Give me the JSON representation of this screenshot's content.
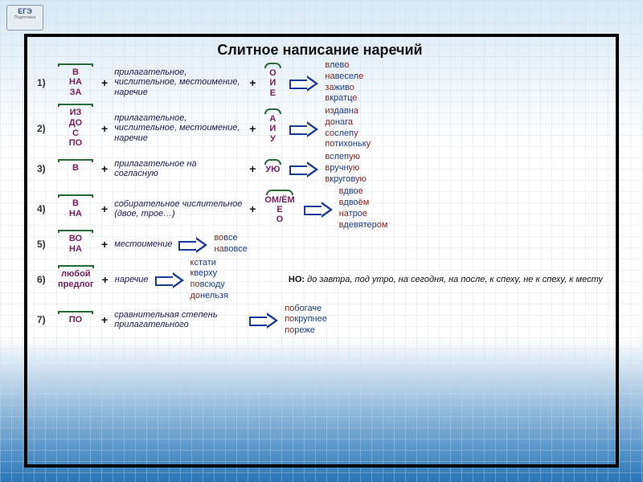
{
  "badge": {
    "line1": "ЕГЭ",
    "line2": "Подготовка"
  },
  "title": "Слитное написание наречий",
  "rows": [
    {
      "num": "1)",
      "prefixes": [
        "В",
        "НА",
        "ЗА"
      ],
      "middle": "прилагательное, числительное, местоимение, наречие",
      "suffixes": [
        "О",
        "И",
        "Е"
      ],
      "examples": [
        {
          "a": "в",
          "b": "лев",
          "c": "о"
        },
        {
          "a": "на",
          "b": "весел",
          "c": "е"
        },
        {
          "a": "за",
          "b": "жив",
          "c": "о"
        },
        {
          "a": "в",
          "b": "кратц",
          "c": "е"
        }
      ]
    },
    {
      "num": "2)",
      "prefixes": [
        "ИЗ",
        "ДО",
        "С",
        "ПО"
      ],
      "middle": "прилагательное, числительное, местоимение, наречие",
      "suffixes": [
        "А",
        "И",
        "У"
      ],
      "examples": [
        {
          "a": "из",
          "b": "давн",
          "c": "а"
        },
        {
          "a": "до",
          "b": "наг",
          "c": "а"
        },
        {
          "a": "со",
          "b": "слеп",
          "c": "у"
        },
        {
          "a": "по",
          "b": "тихоньк",
          "c": "у"
        }
      ]
    },
    {
      "num": "3)",
      "prefixes": [
        "В"
      ],
      "middle": "прилагательное на согласную",
      "suffixes": [
        "УЮ"
      ],
      "examples": [
        {
          "a": "в",
          "b": "слеп",
          "c": "ую"
        },
        {
          "a": "в",
          "b": "ручн",
          "c": "ую"
        },
        {
          "a": "в",
          "b": "кругов",
          "c": "ую"
        }
      ]
    },
    {
      "num": "4)",
      "prefixes": [
        "В",
        "НА"
      ],
      "middle": "собирательное числительное (двое, трое…)",
      "suffixes": [
        "ОМ/ЁМ",
        "Е",
        "О"
      ],
      "examples": [
        {
          "a": "в",
          "b": "дво",
          "c": "е"
        },
        {
          "a": "в",
          "b": "дво",
          "c": "ём"
        },
        {
          "a": "на",
          "b": "тро",
          "c": "е"
        },
        {
          "a": "в",
          "b": "девятер",
          "c": "ом"
        }
      ]
    },
    {
      "num": "5)",
      "prefixes": [
        "ВО",
        "НА"
      ],
      "middle": "местоимение",
      "suffixes": [],
      "examples": [
        {
          "a": "во",
          "b": "все",
          "c": ""
        },
        {
          "a": "на",
          "b": "вовсе",
          "c": ""
        }
      ]
    },
    {
      "num": "6)",
      "prefixes": [
        "любой",
        "предлог"
      ],
      "middle": "наречие",
      "suffixes": [],
      "examples": [
        {
          "a": "к",
          "b": "стати",
          "c": ""
        },
        {
          "a": "к",
          "b": "верху",
          "c": ""
        },
        {
          "a": "по",
          "b": "всюду",
          "c": ""
        },
        {
          "a": "до",
          "b": "нельзя",
          "c": ""
        }
      ],
      "note_label": "НО:",
      "note": " до завтра, под утро, на сегодня, на после, к спеху, не к спеху, к месту"
    },
    {
      "num": "7)",
      "prefixes": [
        "ПО"
      ],
      "middle": "сравнительная степень прилагательного",
      "suffixes": [],
      "examples": [
        {
          "a": "по",
          "b": "богаче",
          "c": ""
        },
        {
          "a": "по",
          "b": "крупнее",
          "c": ""
        },
        {
          "a": "по",
          "b": "реже",
          "c": ""
        }
      ]
    }
  ]
}
